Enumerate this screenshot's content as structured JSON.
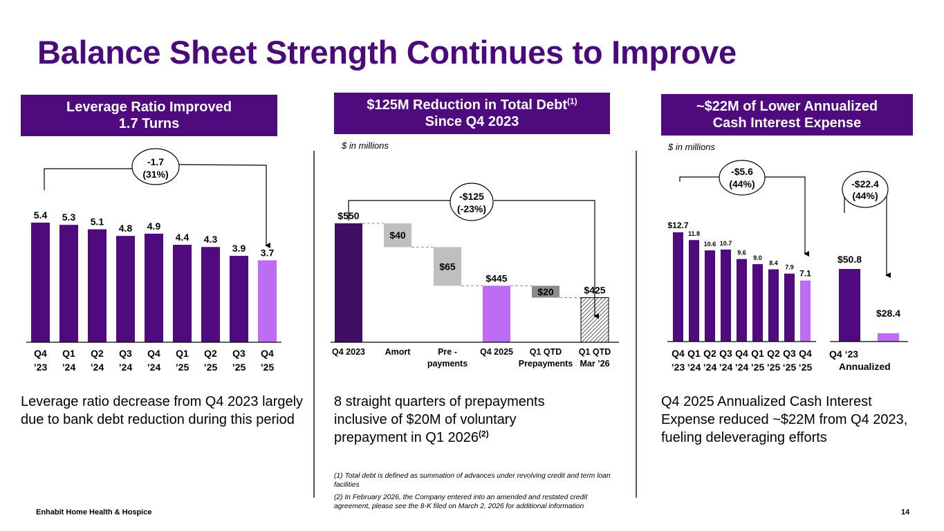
{
  "page": {
    "title": "Balance Sheet Strength Continues to Improve",
    "footer": "Enhabit Home Health & Hospice",
    "page_number": "14",
    "colors": {
      "brand_purple": "#4f0a7d",
      "highlight_purple": "#bf6cf5",
      "dark_purple": "#3f0f63",
      "gray_light": "#bfbfbf",
      "gray_dark": "#8c8c8c"
    }
  },
  "panels": {
    "left": {
      "header_line1": "Leverage Ratio Improved",
      "header_line2": "1.7 Turns",
      "callout_line1": "-1.7",
      "callout_line2": "(31%)",
      "body": "Leverage ratio decrease from Q4 2023 largely due to bank debt reduction during this period"
    },
    "middle": {
      "header_line1": "$125M Reduction in Total Debt",
      "header_sup": "(1)",
      "header_line2": "Since Q4 2023",
      "unit": "$ in millions",
      "callout_line1": "-$125",
      "callout_line2": "(-23%)",
      "body": "8 straight quarters of prepayments inclusive of $20M of voluntary prepayment in Q1 2026",
      "body_sup": "(2)"
    },
    "right": {
      "header_line1": "~$22M of Lower Annualized",
      "header_line2": "Cash Interest Expense",
      "unit": "$ in millions",
      "callout1_line1": "-$5.6",
      "callout1_line2": "(44%)",
      "callout2_line1": "-$22.4",
      "callout2_line2": "(44%)",
      "body": "Q4 2025 Annualized Cash Interest Expense reduced ~$22M from Q4 2023, fueling deleveraging efforts"
    }
  },
  "footnotes": [
    "(1) Total debt is defined as summation of advances under revolving credit and term loan facilities",
    "(2) In February 2026, the Company entered into an amended and restated credit agreement, please see the 8-K filed on March 2, 2026 for additional information"
  ],
  "chart_data": [
    {
      "type": "bar",
      "title": "Leverage Ratio Improved 1.7 Turns",
      "categories": [
        [
          "Q4",
          "’23"
        ],
        [
          "Q1",
          "’24"
        ],
        [
          "Q2",
          "’24"
        ],
        [
          "Q3",
          "’24"
        ],
        [
          "Q4",
          "’24"
        ],
        [
          "Q1",
          "’25"
        ],
        [
          "Q2",
          "’25"
        ],
        [
          "Q3",
          "’25"
        ],
        [
          "Q4",
          "’25"
        ]
      ],
      "values": [
        5.4,
        5.3,
        5.1,
        4.8,
        4.9,
        4.4,
        4.3,
        3.9,
        3.7
      ],
      "labels": [
        "5.4",
        "5.3",
        "5.1",
        "4.8",
        "4.9",
        "4.4",
        "4.3",
        "3.9",
        "3.7"
      ],
      "highlight_index": 8,
      "ylim": [
        0,
        5.4
      ],
      "annotation": "-1.7 (31%)",
      "grid": false
    },
    {
      "type": "bar",
      "subtype": "waterfall",
      "title": "$125M Reduction in Total Debt Since Q4 2023",
      "unit": "$ in millions",
      "categories": [
        [
          "Q4 2023"
        ],
        [
          "Amort"
        ],
        [
          "Pre -",
          "payments"
        ],
        [
          "Q4 2025"
        ],
        [
          "Q1 QTD",
          "Prepayments"
        ],
        [
          "Q1 QTD",
          "Mar ’26"
        ]
      ],
      "steps": [
        {
          "kind": "total",
          "value": 550,
          "label": "$550",
          "style": "dark"
        },
        {
          "kind": "decrease",
          "value": 40,
          "label": "$40",
          "style": "gray"
        },
        {
          "kind": "decrease",
          "value": 65,
          "label": "$65",
          "style": "gray"
        },
        {
          "kind": "total",
          "value": 445,
          "label": "$445",
          "style": "highlight"
        },
        {
          "kind": "decrease",
          "value": 20,
          "label": "$20",
          "style": "darkgray"
        },
        {
          "kind": "total",
          "value": 425,
          "label": "$425",
          "style": "hatched"
        }
      ],
      "axis_floor": 350,
      "annotation": "-$125 (-23%)",
      "grid": false
    },
    {
      "type": "bar",
      "title": "Quarterly Cash Interest Expense",
      "unit": "$ in millions",
      "categories": [
        [
          "Q4",
          "’23"
        ],
        [
          "Q1",
          "’24"
        ],
        [
          "Q2",
          "’24"
        ],
        [
          "Q3",
          "’24"
        ],
        [
          "Q4",
          "’24"
        ],
        [
          "Q1",
          "’25"
        ],
        [
          "Q2",
          "’25"
        ],
        [
          "Q3",
          "‘25"
        ],
        [
          "Q4",
          "‘25"
        ]
      ],
      "values": [
        12.7,
        11.8,
        10.6,
        10.7,
        9.6,
        9.0,
        8.4,
        7.9,
        7.1
      ],
      "labels": [
        "$12.7",
        "11.8",
        "10.6",
        "10.7",
        "9.6",
        "9.0",
        "8.4",
        "7.9",
        "7.1"
      ],
      "highlight_index": 8,
      "annotation": "-$5.6 (44%)",
      "grid": false
    },
    {
      "type": "bar",
      "title": "Annualized Cash Interest Expense",
      "unit": "$ in millions",
      "categories": [
        "Q4 ‘23",
        "Annualized"
      ],
      "values": [
        50.8,
        28.4
      ],
      "labels": [
        "$50.8",
        "$28.4"
      ],
      "highlight_index": 1,
      "annotation": "-$22.4 (44%)",
      "grid": false
    }
  ]
}
